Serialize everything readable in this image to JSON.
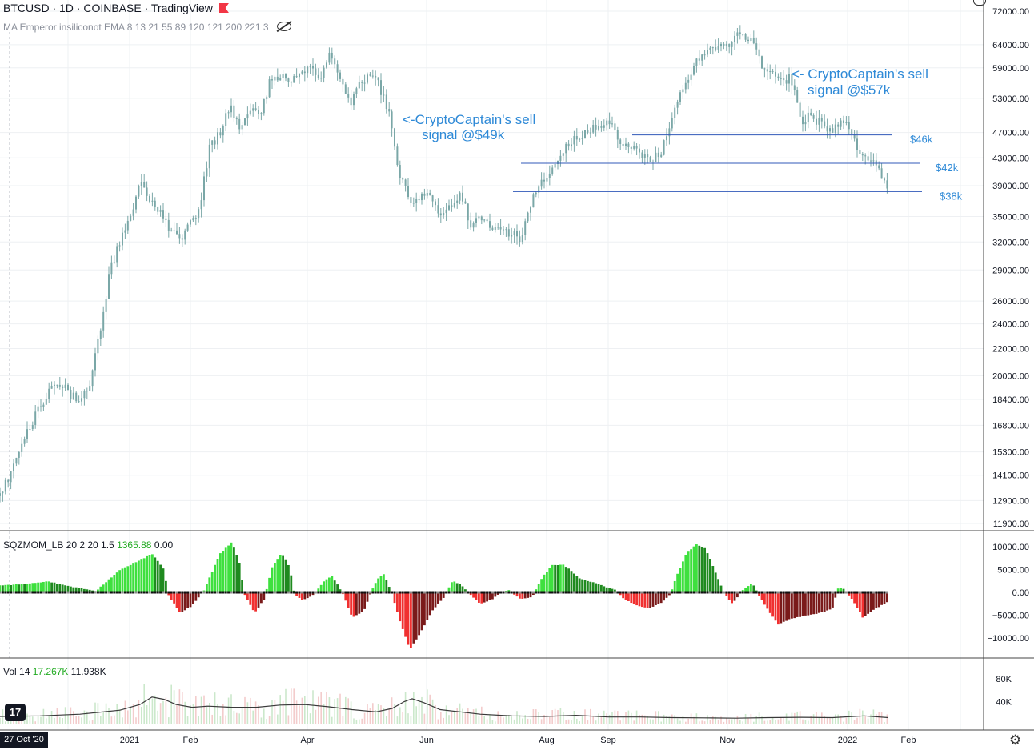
{
  "header": {
    "title": "BTCUSD · 1D · COINBASE · TradingView",
    "indicator": "MA Emperor insiliconot EMA 8 13 21 55 89 120 121 200 221 3"
  },
  "colors": {
    "up": "#21b821",
    "down": "#e12a2a",
    "candle": "#7aa7a7",
    "annotation": "#2f8ad7",
    "line": "#3158b8",
    "volume_ma": "#3a3a3a"
  },
  "chart_data": [
    {
      "type": "line",
      "name": "price",
      "x_ticks": [
        "2021",
        "Feb",
        "Apr",
        "Jun",
        "Aug",
        "Sep",
        "Nov",
        "2022",
        "Feb"
      ],
      "y_ticks": [
        "72000.00",
        "64000.00",
        "59000.00",
        "53000.00",
        "47000.00",
        "43000.00",
        "39000.00",
        "35000.00",
        "32000.00",
        "29000.00",
        "26000.00",
        "24000.00",
        "22000.00",
        "20000.00",
        "18400.00",
        "16800.00",
        "15300.00",
        "14100.00",
        "12900.00",
        "11900.00"
      ],
      "y_scale": "log",
      "series": [
        {
          "values": [
            [
              0,
              13100
            ],
            [
              12,
              14100
            ],
            [
              25,
              15600
            ],
            [
              38,
              16800
            ],
            [
              50,
              17900
            ],
            [
              62,
              19000
            ],
            [
              75,
              19500
            ],
            [
              88,
              18700
            ],
            [
              100,
              18500
            ],
            [
              112,
              19200
            ],
            [
              125,
              23200
            ],
            [
              138,
              29000
            ],
            [
              150,
              32000
            ],
            [
              162,
              34500
            ],
            [
              175,
              39500
            ],
            [
              188,
              37000
            ],
            [
              200,
              35500
            ],
            [
              212,
              33500
            ],
            [
              225,
              32000
            ],
            [
              238,
              34000
            ],
            [
              250,
              36500
            ],
            [
              262,
              44500
            ],
            [
              275,
              47000
            ],
            [
              288,
              51500
            ],
            [
              300,
              47500
            ],
            [
              312,
              51000
            ],
            [
              325,
              50000
            ],
            [
              338,
              56500
            ],
            [
              350,
              57500
            ],
            [
              362,
              55000
            ],
            [
              375,
              58500
            ],
            [
              388,
              59000
            ],
            [
              400,
              57500
            ],
            [
              412,
              61500
            ],
            [
              425,
              57000
            ],
            [
              438,
              52500
            ],
            [
              450,
              56000
            ],
            [
              462,
              58000
            ],
            [
              475,
              55000
            ],
            [
              488,
              49000
            ],
            [
              500,
              40000
            ],
            [
              512,
              37000
            ],
            [
              525,
              37500
            ],
            [
              538,
              37500
            ],
            [
              550,
              35500
            ],
            [
              562,
              36000
            ],
            [
              575,
              38000
            ],
            [
              588,
              34000
            ],
            [
              600,
              35000
            ],
            [
              612,
              33500
            ],
            [
              625,
              34000
            ],
            [
              638,
              33000
            ],
            [
              650,
              32500
            ],
            [
              662,
              36000
            ],
            [
              675,
              40000
            ],
            [
              688,
              40500
            ],
            [
              700,
              44000
            ],
            [
              712,
              45500
            ],
            [
              725,
              46500
            ],
            [
              738,
              47500
            ],
            [
              750,
              48500
            ],
            [
              762,
              49000
            ],
            [
              775,
              45500
            ],
            [
              788,
              44500
            ],
            [
              800,
              43500
            ],
            [
              812,
              42500
            ],
            [
              825,
              43500
            ],
            [
              838,
              48000
            ],
            [
              850,
              54000
            ],
            [
              862,
              58000
            ],
            [
              875,
              61000
            ],
            [
              888,
              63000
            ],
            [
              900,
              63500
            ],
            [
              912,
              64500
            ],
            [
              925,
              67000
            ],
            [
              938,
              65500
            ],
            [
              950,
              60000
            ],
            [
              962,
              58000
            ],
            [
              975,
              56000
            ],
            [
              988,
              57000
            ],
            [
              1000,
              49000
            ],
            [
              1012,
              50000
            ],
            [
              1025,
              48500
            ],
            [
              1038,
              47000
            ],
            [
              1050,
              49000
            ],
            [
              1062,
              47500
            ],
            [
              1075,
              43500
            ],
            [
              1088,
              42500
            ],
            [
              1100,
              41000
            ],
            [
              1110,
              38500
            ]
          ]
        }
      ],
      "lines": [
        {
          "value": 46600,
          "label": "$46k"
        },
        {
          "value": 42200,
          "label": "$42k"
        },
        {
          "value": 38200,
          "label": "$38k"
        }
      ],
      "annotations": [
        {
          "text": [
            "<-CryptoCaptain's sell",
            "signal @$49k"
          ]
        },
        {
          "text": [
            "<- CryptoCaptain's sell",
            "signal @$57k"
          ]
        }
      ]
    },
    {
      "type": "bar",
      "name": "SQZMOM_LB 20 2 20 1.5",
      "legend_values": [
        "1365.88",
        "0.00"
      ],
      "y_ticks": [
        "10000.00",
        "5000.00",
        "0.00",
        "−5000.00",
        "−10000.00"
      ],
      "ylim": [
        -12500,
        12500
      ],
      "values": [
        [
          0,
          1500
        ],
        [
          30,
          1800
        ],
        [
          60,
          2400
        ],
        [
          90,
          1200
        ],
        [
          120,
          300
        ],
        [
          150,
          5000
        ],
        [
          175,
          7000
        ],
        [
          190,
          8500
        ],
        [
          205,
          5000
        ],
        [
          210,
          -400
        ],
        [
          225,
          -4500
        ],
        [
          240,
          -3000
        ],
        [
          255,
          500
        ],
        [
          275,
          8500
        ],
        [
          290,
          11000
        ],
        [
          300,
          6000
        ],
        [
          305,
          -200
        ],
        [
          318,
          -4500
        ],
        [
          330,
          -1500
        ],
        [
          340,
          5500
        ],
        [
          352,
          8500
        ],
        [
          362,
          5500
        ],
        [
          368,
          -400
        ],
        [
          378,
          -1800
        ],
        [
          392,
          -500
        ],
        [
          405,
          2500
        ],
        [
          415,
          3600
        ],
        [
          428,
          -200
        ],
        [
          440,
          -5500
        ],
        [
          455,
          -4000
        ],
        [
          462,
          -500
        ],
        [
          472,
          3000
        ],
        [
          480,
          4000
        ],
        [
          490,
          -500
        ],
        [
          500,
          -6500
        ],
        [
          512,
          -12500
        ],
        [
          525,
          -9000
        ],
        [
          540,
          -4000
        ],
        [
          555,
          -1000
        ],
        [
          565,
          2500
        ],
        [
          575,
          1800
        ],
        [
          588,
          -500
        ],
        [
          600,
          -2500
        ],
        [
          615,
          -1500
        ],
        [
          625,
          -200
        ],
        [
          635,
          600
        ],
        [
          650,
          -1500
        ],
        [
          665,
          -1000
        ],
        [
          678,
          3500
        ],
        [
          690,
          6000
        ],
        [
          705,
          6000
        ],
        [
          725,
          3000
        ],
        [
          745,
          2000
        ],
        [
          760,
          1000
        ],
        [
          770,
          500
        ],
        [
          780,
          -1500
        ],
        [
          795,
          -2800
        ],
        [
          810,
          -3500
        ],
        [
          825,
          -2500
        ],
        [
          838,
          -300
        ],
        [
          845,
          3500
        ],
        [
          858,
          8500
        ],
        [
          870,
          10500
        ],
        [
          882,
          9500
        ],
        [
          895,
          4000
        ],
        [
          905,
          -200
        ],
        [
          915,
          -2500
        ],
        [
          928,
          500
        ],
        [
          940,
          2000
        ],
        [
          948,
          -500
        ],
        [
          960,
          -4000
        ],
        [
          972,
          -7000
        ],
        [
          985,
          -6000
        ],
        [
          995,
          -5500
        ],
        [
          1010,
          -5000
        ],
        [
          1025,
          -4500
        ],
        [
          1040,
          -3500
        ],
        [
          1048,
          1300
        ],
        [
          1055,
          600
        ],
        [
          1065,
          -1500
        ],
        [
          1078,
          -5500
        ],
        [
          1090,
          -4000
        ],
        [
          1100,
          -3000
        ],
        [
          1110,
          -2000
        ]
      ]
    },
    {
      "type": "area",
      "name": "Vol 14",
      "legend_values": [
        "17.267K",
        "11.938K"
      ],
      "y_ticks": [
        "80K",
        "40K"
      ],
      "ylim": [
        0,
        100000
      ],
      "values": [
        [
          0,
          14000
        ],
        [
          50,
          15000
        ],
        [
          100,
          18000
        ],
        [
          150,
          25000
        ],
        [
          175,
          35000
        ],
        [
          190,
          48000
        ],
        [
          205,
          44000
        ],
        [
          220,
          35000
        ],
        [
          240,
          30000
        ],
        [
          260,
          32000
        ],
        [
          290,
          30000
        ],
        [
          320,
          30000
        ],
        [
          350,
          34000
        ],
        [
          380,
          35000
        ],
        [
          410,
          31000
        ],
        [
          440,
          26000
        ],
        [
          470,
          22000
        ],
        [
          490,
          28000
        ],
        [
          505,
          40000
        ],
        [
          515,
          45000
        ],
        [
          530,
          38000
        ],
        [
          550,
          26000
        ],
        [
          575,
          22000
        ],
        [
          600,
          18000
        ],
        [
          640,
          15000
        ],
        [
          680,
          14000
        ],
        [
          720,
          16000
        ],
        [
          760,
          13000
        ],
        [
          800,
          13000
        ],
        [
          840,
          12000
        ],
        [
          880,
          11500
        ],
        [
          920,
          11000
        ],
        [
          960,
          12000
        ],
        [
          1000,
          12500
        ],
        [
          1040,
          12000
        ],
        [
          1080,
          15000
        ],
        [
          1110,
          12000
        ]
      ]
    }
  ],
  "footer": {
    "date_badge": "27 Oct '20",
    "logo": "17",
    "settings": "⚙"
  }
}
